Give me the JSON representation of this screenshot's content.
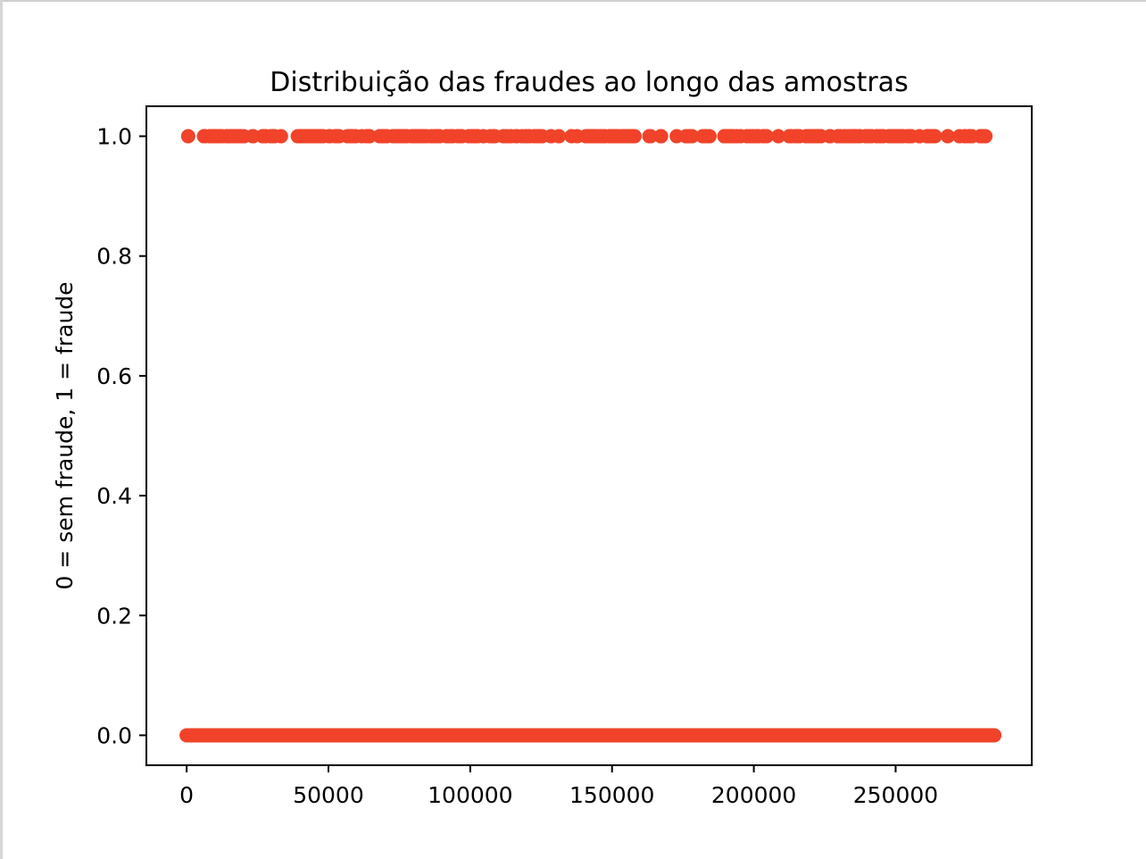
{
  "colors": {
    "marker": "#f0432a",
    "axes": "#000000",
    "background": "#ffffff"
  },
  "chart_data": {
    "type": "scatter",
    "title": "Distribuição das fraudes ao longo das amostras",
    "xlabel": "",
    "ylabel": "0 = sem fraude, 1 = fraude",
    "xlim": [
      -14200,
      298000
    ],
    "ylim": [
      -0.05,
      1.05
    ],
    "x_ticks": [
      0,
      50000,
      100000,
      150000,
      200000,
      250000
    ],
    "x_tick_labels": [
      "0",
      "50000",
      "100000",
      "150000",
      "200000",
      "250000"
    ],
    "y_ticks": [
      0.0,
      0.2,
      0.4,
      0.6,
      0.8,
      1.0
    ],
    "y_tick_labels": [
      "0.0",
      "0.2",
      "0.4",
      "0.6",
      "0.8",
      "1.0"
    ],
    "grid": false,
    "legend": "none",
    "series": [
      {
        "label_value": 0,
        "x_range": [
          0,
          284806
        ],
        "note_fill": "dense band of points covering the full x range at y = 0"
      },
      {
        "label_value": 1,
        "x": [
          541,
          6108,
          6329,
          6331,
          6334,
          6336,
          8296,
          8312,
          8335,
          8615,
          8617,
          8842,
          8845,
          8972,
          9035,
          9179,
          9252,
          9487,
          9509,
          10204,
          10484,
          10497,
          10498,
          10568,
          10630,
          10690,
          10801,
          10891,
          10897,
          11343,
          11710,
          11841,
          11880,
          12070,
          12108,
          12261,
          12369,
          14104,
          14170,
          14197,
          14211,
          14338,
          15166,
          15204,
          15225,
          15451,
          15476,
          15506,
          15539,
          15566,
          15736,
          15751,
          15781,
          15810,
          16415,
          16780,
          16863,
          17317,
          17366,
          17407,
          17453,
          17480,
          18466,
          18472,
          18773,
          18809,
          20198,
          23308,
          23422,
          26802,
          27362,
          27627,
          27738,
          27749,
          29687,
          30100,
          30314,
          30384,
          30398,
          30442,
          30473,
          30496,
          31002,
          33276,
          39183,
          40085,
          40525,
          41395,
          41569,
          41943,
          42007,
          42009,
          42528,
          42549,
          42590,
          42609,
          42635,
          42674,
          42696,
          42700,
          42741,
          42756,
          42769,
          42784,
          42856,
          42887,
          42936,
          42945,
          42958,
          43061,
          43160,
          43204,
          43428,
          43624,
          43681,
          43773,
          44001,
          44091,
          44223,
          44270,
          44556,
          45203,
          45732,
          46909,
          46918,
          46998,
          47802,
          48094,
          50211,
          50537,
          52466,
          52521,
          52584,
          53591,
          53794,
          56703,
          57248,
          57470,
          57615,
          58422,
          58761,
          59539,
          61787,
          63421,
          63634,
          64329,
          64411,
          64460,
          68067,
          68320,
          68522,
          68633,
          69498,
          69980,
          70141,
          70589,
          72757,
          73784,
          73857,
          74496,
          74507,
          74794,
          75511,
          76555,
          76609,
          76929,
          77099,
          77348,
          77387,
          77682,
          79525,
          79536,
          79835,
          79874,
          79883,
          80760,
          81186,
          81609,
          82400,
          83053,
          83297,
          83417,
          84543,
          86155,
          87354,
          88258,
          88307,
          88876,
          88897,
          89190,
          91671,
          92777,
          93424,
          93486,
          93788,
          95534,
          95597,
          96341,
          96789,
          96994,
          99506,
          100623,
          101509,
          102441,
          102442,
          102443,
          102444,
          102445,
          102446,
          104670,
          107067,
          108258,
          108708,
          111690,
          112840,
          114271,
          116139,
          116404,
          118308,
          119714,
          119781,
          120505,
          120837,
          122479,
          123141,
          123201,
          123238,
          123270,
          123301,
          124036,
          124087,
          124115,
          124176,
          125342,
          128479,
          131272,
          135718,
          137705,
          140786,
          141257,
          141258,
          141259,
          141260,
          142405,
          142557,
          143188,
          143333,
          143334,
          143335,
          143336,
          143728,
          143731,
          144104,
          144108,
          144754,
          145800,
          146790,
          147548,
          149145,
          149357,
          149522,
          149577,
          149587,
          149600,
          149869,
          149874,
          150601,
          150644,
          150647,
          150654,
          150660,
          150661,
          150662,
          150663,
          150665,
          150666,
          150667,
          150668,
          150669,
          150677,
          150678,
          150679,
          150680,
          150684,
          150687,
          150692,
          150697,
          150715,
          150925,
          151006,
          151007,
          151008,
          151009,
          151011,
          151103,
          151196,
          151462,
          151519,
          151730,
          151807,
          152019,
          152223,
          152295,
          153823,
          153835,
          153885,
          154234,
          154286,
          154371,
          154454,
          154587,
          154633,
          154668,
          154670,
          154676,
          154684,
          154693,
          154697,
          154718,
          154719,
          155429,
          155516,
          155554,
          155662,
          156988,
          156990,
          157585,
          157871,
          157918,
          163149,
          163586,
          167184,
          167305,
          172787,
          176049,
          177195,
          178208,
          181966,
          182992,
          183106,
          184379,
          189587,
          189701,
          189878,
          190368,
          191074,
          191267,
          191359,
          191544,
          191690,
          192382,
          192529,
          192584,
          192687,
          193994,
          195383,
          197586,
          198868,
          199896,
          201098,
          201601,
          203324,
          203328,
          203700,
          204064,
          204079,
          204503,
          208651,
          212516,
          212644,
          213092,
          213116,
          214662,
          214775,
          215132,
          215953,
          215984,
          218442,
          219025,
          219892,
          220725,
          221018,
          221041,
          222133,
          222419,
          223366,
          223572,
          223578,
          223618,
          226814,
          226877,
          229712,
          229730,
          230076,
          230476,
          231978,
          233258,
          234574,
          234632,
          234633,
          234705,
          235616,
          235634,
          235644,
          237107,
          237426,
          239499,
          239501,
          240222,
          241254,
          241445,
          243393,
          243547,
          243699,
          243749,
          243848,
          244004,
          244333,
          245347,
          245556,
          247673,
          247995,
          248296,
          248971,
          249167,
          249239,
          249607,
          249828,
          249963,
          250761,
          251477,
          251866,
          251881,
          251891,
          251904,
          252124,
          252774,
          254344,
          254395,
          255403,
          255556,
          258403,
          261056,
          261473,
          261925,
          262560,
          262826,
          263080,
          263274,
          263324,
          263877,
          268375,
          272521,
          274382,
          274475,
          275992,
          276071,
          276864,
          279863,
          280143,
          280149,
          281144,
          281674
        ]
      }
    ]
  }
}
